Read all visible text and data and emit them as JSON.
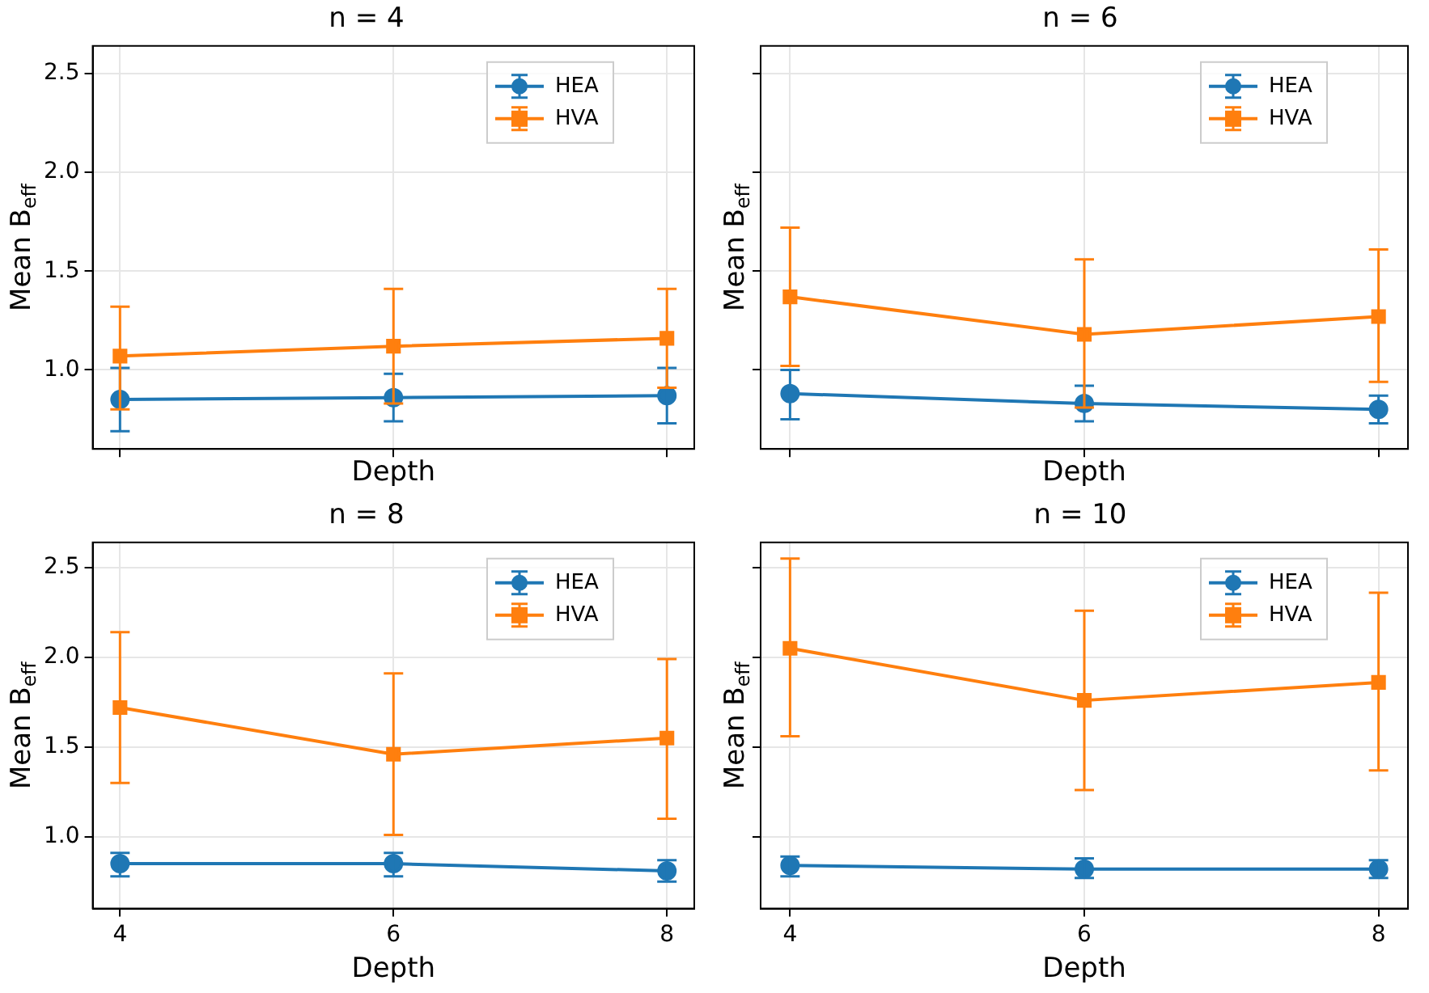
{
  "chart_data": [
    {
      "type": "line",
      "title": "n = 4",
      "xlabel": "Depth",
      "ylabel": "Mean B$_{eff}$",
      "x": [
        4,
        6,
        8
      ],
      "xlim": [
        3.8,
        8.2
      ],
      "xticks": [
        {
          "value": 4,
          "label": null
        },
        {
          "value": 6,
          "label": null
        },
        {
          "value": 8,
          "label": null
        }
      ],
      "ylim": [
        0.6,
        2.64
      ],
      "yticks": [
        {
          "value": 1,
          "label": "1.0"
        },
        {
          "value": 1.5,
          "label": "1.5"
        },
        {
          "value": 2,
          "label": "2.0"
        },
        {
          "value": 2.5,
          "label": "2.5"
        }
      ],
      "grid": true,
      "legend": "top right",
      "tick_labels": "y",
      "series": [
        {
          "name": "HEA",
          "color": "#1f77b4",
          "marker": "circle",
          "values": [
            0.85,
            0.86,
            0.87
          ],
          "errors": [
            [
              0.69,
              1.01
            ],
            [
              0.74,
              0.98
            ],
            [
              0.73,
              1.01
            ]
          ]
        },
        {
          "name": "HVA",
          "color": "#ff7f0e",
          "marker": "square",
          "values": [
            1.07,
            1.12,
            1.16
          ],
          "errors": [
            [
              0.8,
              1.32
            ],
            [
              0.83,
              1.41
            ],
            [
              0.91,
              1.41
            ]
          ]
        }
      ]
    },
    {
      "type": "line",
      "title": "n = 6",
      "xlabel": "Depth",
      "ylabel": "Mean B$_{eff}$",
      "x": [
        4,
        6,
        8
      ],
      "xlim": [
        3.8,
        8.2
      ],
      "xticks": [
        {
          "value": 4,
          "label": null
        },
        {
          "value": 6,
          "label": null
        },
        {
          "value": 8,
          "label": null
        }
      ],
      "ylim": [
        0.6,
        2.64
      ],
      "yticks": [
        {
          "value": 1,
          "label": null
        },
        {
          "value": 1.5,
          "label": null
        },
        {
          "value": 2,
          "label": null
        },
        {
          "value": 2.5,
          "label": null
        }
      ],
      "grid": true,
      "legend": "top right",
      "tick_labels": false,
      "series": [
        {
          "name": "HEA",
          "color": "#1f77b4",
          "marker": "circle",
          "values": [
            0.88,
            0.83,
            0.8
          ],
          "errors": [
            [
              0.75,
              1.0
            ],
            [
              0.74,
              0.92
            ],
            [
              0.73,
              0.87
            ]
          ]
        },
        {
          "name": "HVA",
          "color": "#ff7f0e",
          "marker": "square",
          "values": [
            1.37,
            1.18,
            1.27
          ],
          "errors": [
            [
              1.02,
              1.72
            ],
            [
              0.81,
              1.56
            ],
            [
              0.94,
              1.61
            ]
          ]
        }
      ]
    },
    {
      "type": "line",
      "title": "n = 8",
      "xlabel": "Depth",
      "ylabel": "Mean B$_{eff}$",
      "x": [
        4,
        6,
        8
      ],
      "xlim": [
        3.8,
        8.2
      ],
      "xticks": [
        4,
        6,
        8
      ],
      "ylim": [
        0.6,
        2.64
      ],
      "yticks": [
        {
          "value": 1,
          "label": "1.0"
        },
        {
          "value": 1.5,
          "label": "1.5"
        },
        {
          "value": 2,
          "label": "2.0"
        },
        {
          "value": 2.5,
          "label": "2.5"
        }
      ],
      "grid": true,
      "legend": "top right",
      "series": [
        {
          "name": "HEA",
          "color": "#1f77b4",
          "marker": "circle",
          "values": [
            0.85,
            0.85,
            0.81
          ],
          "errors": [
            [
              0.78,
              0.91
            ],
            [
              0.78,
              0.91
            ],
            [
              0.75,
              0.87
            ]
          ]
        },
        {
          "name": "HVA",
          "color": "#ff7f0e",
          "marker": "square",
          "values": [
            1.72,
            1.46,
            1.55
          ],
          "errors": [
            [
              1.3,
              2.14
            ],
            [
              1.01,
              1.91
            ],
            [
              1.1,
              1.99
            ]
          ]
        }
      ]
    },
    {
      "type": "line",
      "title": "n = 10",
      "xlabel": "Depth",
      "ylabel": "Mean B$_{eff}$",
      "x": [
        4,
        6,
        8
      ],
      "xlim": [
        3.8,
        8.2
      ],
      "xticks": [
        4,
        6,
        8
      ],
      "ylim": [
        0.6,
        2.64
      ],
      "yticks": [
        {
          "value": 1,
          "label": null
        },
        {
          "value": 1.5,
          "label": null
        },
        {
          "value": 2,
          "label": null
        },
        {
          "value": 2.5,
          "label": null
        }
      ],
      "grid": true,
      "legend": "top right",
      "tick_labels": "x",
      "series": [
        {
          "name": "HEA",
          "color": "#1f77b4",
          "marker": "circle",
          "values": [
            0.84,
            0.82,
            0.82
          ],
          "errors": [
            [
              0.78,
              0.89
            ],
            [
              0.77,
              0.88
            ],
            [
              0.77,
              0.87
            ]
          ]
        },
        {
          "name": "HVA",
          "color": "#ff7f0e",
          "marker": "square",
          "values": [
            2.05,
            1.76,
            1.86
          ],
          "errors": [
            [
              1.56,
              2.55
            ],
            [
              1.26,
              2.26
            ],
            [
              1.37,
              2.36
            ]
          ]
        }
      ]
    }
  ]
}
